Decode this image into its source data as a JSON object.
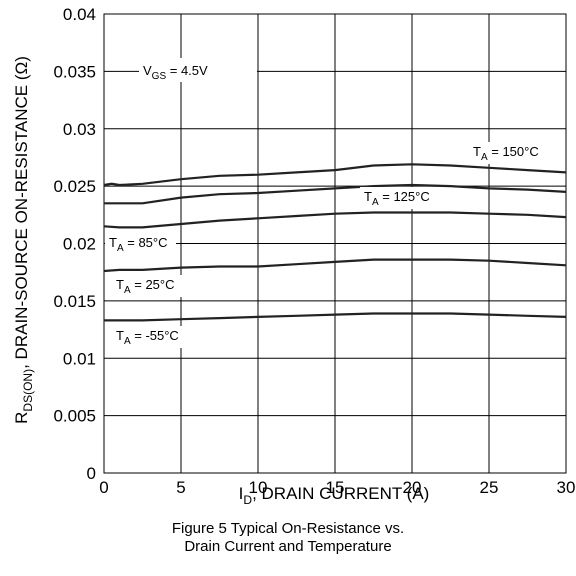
{
  "chart_data": {
    "type": "line",
    "xlabel": {
      "main": "I",
      "sub": "D",
      "rest": ", DRAIN CURRENT (A)"
    },
    "ylabel": {
      "main": "R",
      "sub": "DS(ON)",
      "rest": ", DRAIN-SOURCE ON-RESISTANCE (Ω)"
    },
    "xlim": [
      0,
      30
    ],
    "ylim": [
      0,
      0.04
    ],
    "x_ticks": [
      "0",
      "5",
      "10",
      "15",
      "20",
      "25",
      "30"
    ],
    "y_ticks": [
      "0",
      "0.005",
      "0.01",
      "0.015",
      "0.02",
      "0.025",
      "0.03",
      "0.035",
      "0.04"
    ],
    "grid": true,
    "annotation": {
      "main": "V",
      "sub": "GS",
      "rest": " = 4.5V"
    },
    "series": [
      {
        "name": "T_A = 150°C",
        "label": {
          "main": "T",
          "sub": "A",
          "rest": " = 150°C"
        },
        "x": [
          0,
          0.5,
          1,
          2.5,
          5,
          7.5,
          10,
          12.5,
          15,
          17.5,
          20,
          22.5,
          25,
          27.5,
          30
        ],
        "y": [
          0.0251,
          0.0252,
          0.0251,
          0.0252,
          0.0256,
          0.0259,
          0.026,
          0.0262,
          0.0264,
          0.0268,
          0.0269,
          0.0268,
          0.0266,
          0.0264,
          0.0262
        ]
      },
      {
        "name": "T_A = 125°C",
        "label": {
          "main": "T",
          "sub": "A",
          "rest": " = 125°C"
        },
        "x": [
          0,
          1,
          2.5,
          5,
          7.5,
          10,
          12.5,
          15,
          17.5,
          20,
          22.5,
          25,
          27.5,
          30
        ],
        "y": [
          0.0235,
          0.0235,
          0.0235,
          0.024,
          0.0243,
          0.0244,
          0.0246,
          0.0248,
          0.025,
          0.0251,
          0.025,
          0.0248,
          0.0247,
          0.0245
        ]
      },
      {
        "name": "T_A = 85°C",
        "label": {
          "main": "T",
          "sub": "A",
          "rest": " = 85°C"
        },
        "x": [
          0,
          1,
          2.5,
          5,
          7.5,
          10,
          12.5,
          15,
          17.5,
          20,
          22.5,
          25,
          27.5,
          30
        ],
        "y": [
          0.0215,
          0.0214,
          0.0214,
          0.0217,
          0.022,
          0.0222,
          0.0224,
          0.0226,
          0.0227,
          0.0227,
          0.0227,
          0.0226,
          0.0225,
          0.0223
        ]
      },
      {
        "name": "T_A = 25°C",
        "label": {
          "main": "T",
          "sub": "A",
          "rest": " = 25°C"
        },
        "x": [
          0,
          1,
          2.5,
          5,
          7.5,
          10,
          12.5,
          15,
          17.5,
          20,
          22.5,
          25,
          27.5,
          30
        ],
        "y": [
          0.0176,
          0.0177,
          0.0177,
          0.0179,
          0.018,
          0.018,
          0.0182,
          0.0184,
          0.0186,
          0.0186,
          0.0186,
          0.0185,
          0.0183,
          0.0181
        ]
      },
      {
        "name": "T_A = -55°C",
        "label": {
          "main": "T",
          "sub": "A",
          "rest": " = -55°C"
        },
        "x": [
          0,
          1,
          2.5,
          5,
          7.5,
          10,
          12.5,
          15,
          17.5,
          20,
          22.5,
          25,
          27.5,
          30
        ],
        "y": [
          0.0133,
          0.0133,
          0.0133,
          0.0134,
          0.0135,
          0.0136,
          0.0137,
          0.0138,
          0.0139,
          0.0139,
          0.0139,
          0.0138,
          0.0137,
          0.0136
        ]
      }
    ]
  },
  "caption": {
    "line1": "Figure 5 Typical On-Resistance vs.",
    "line2": "Drain Current and Temperature"
  }
}
